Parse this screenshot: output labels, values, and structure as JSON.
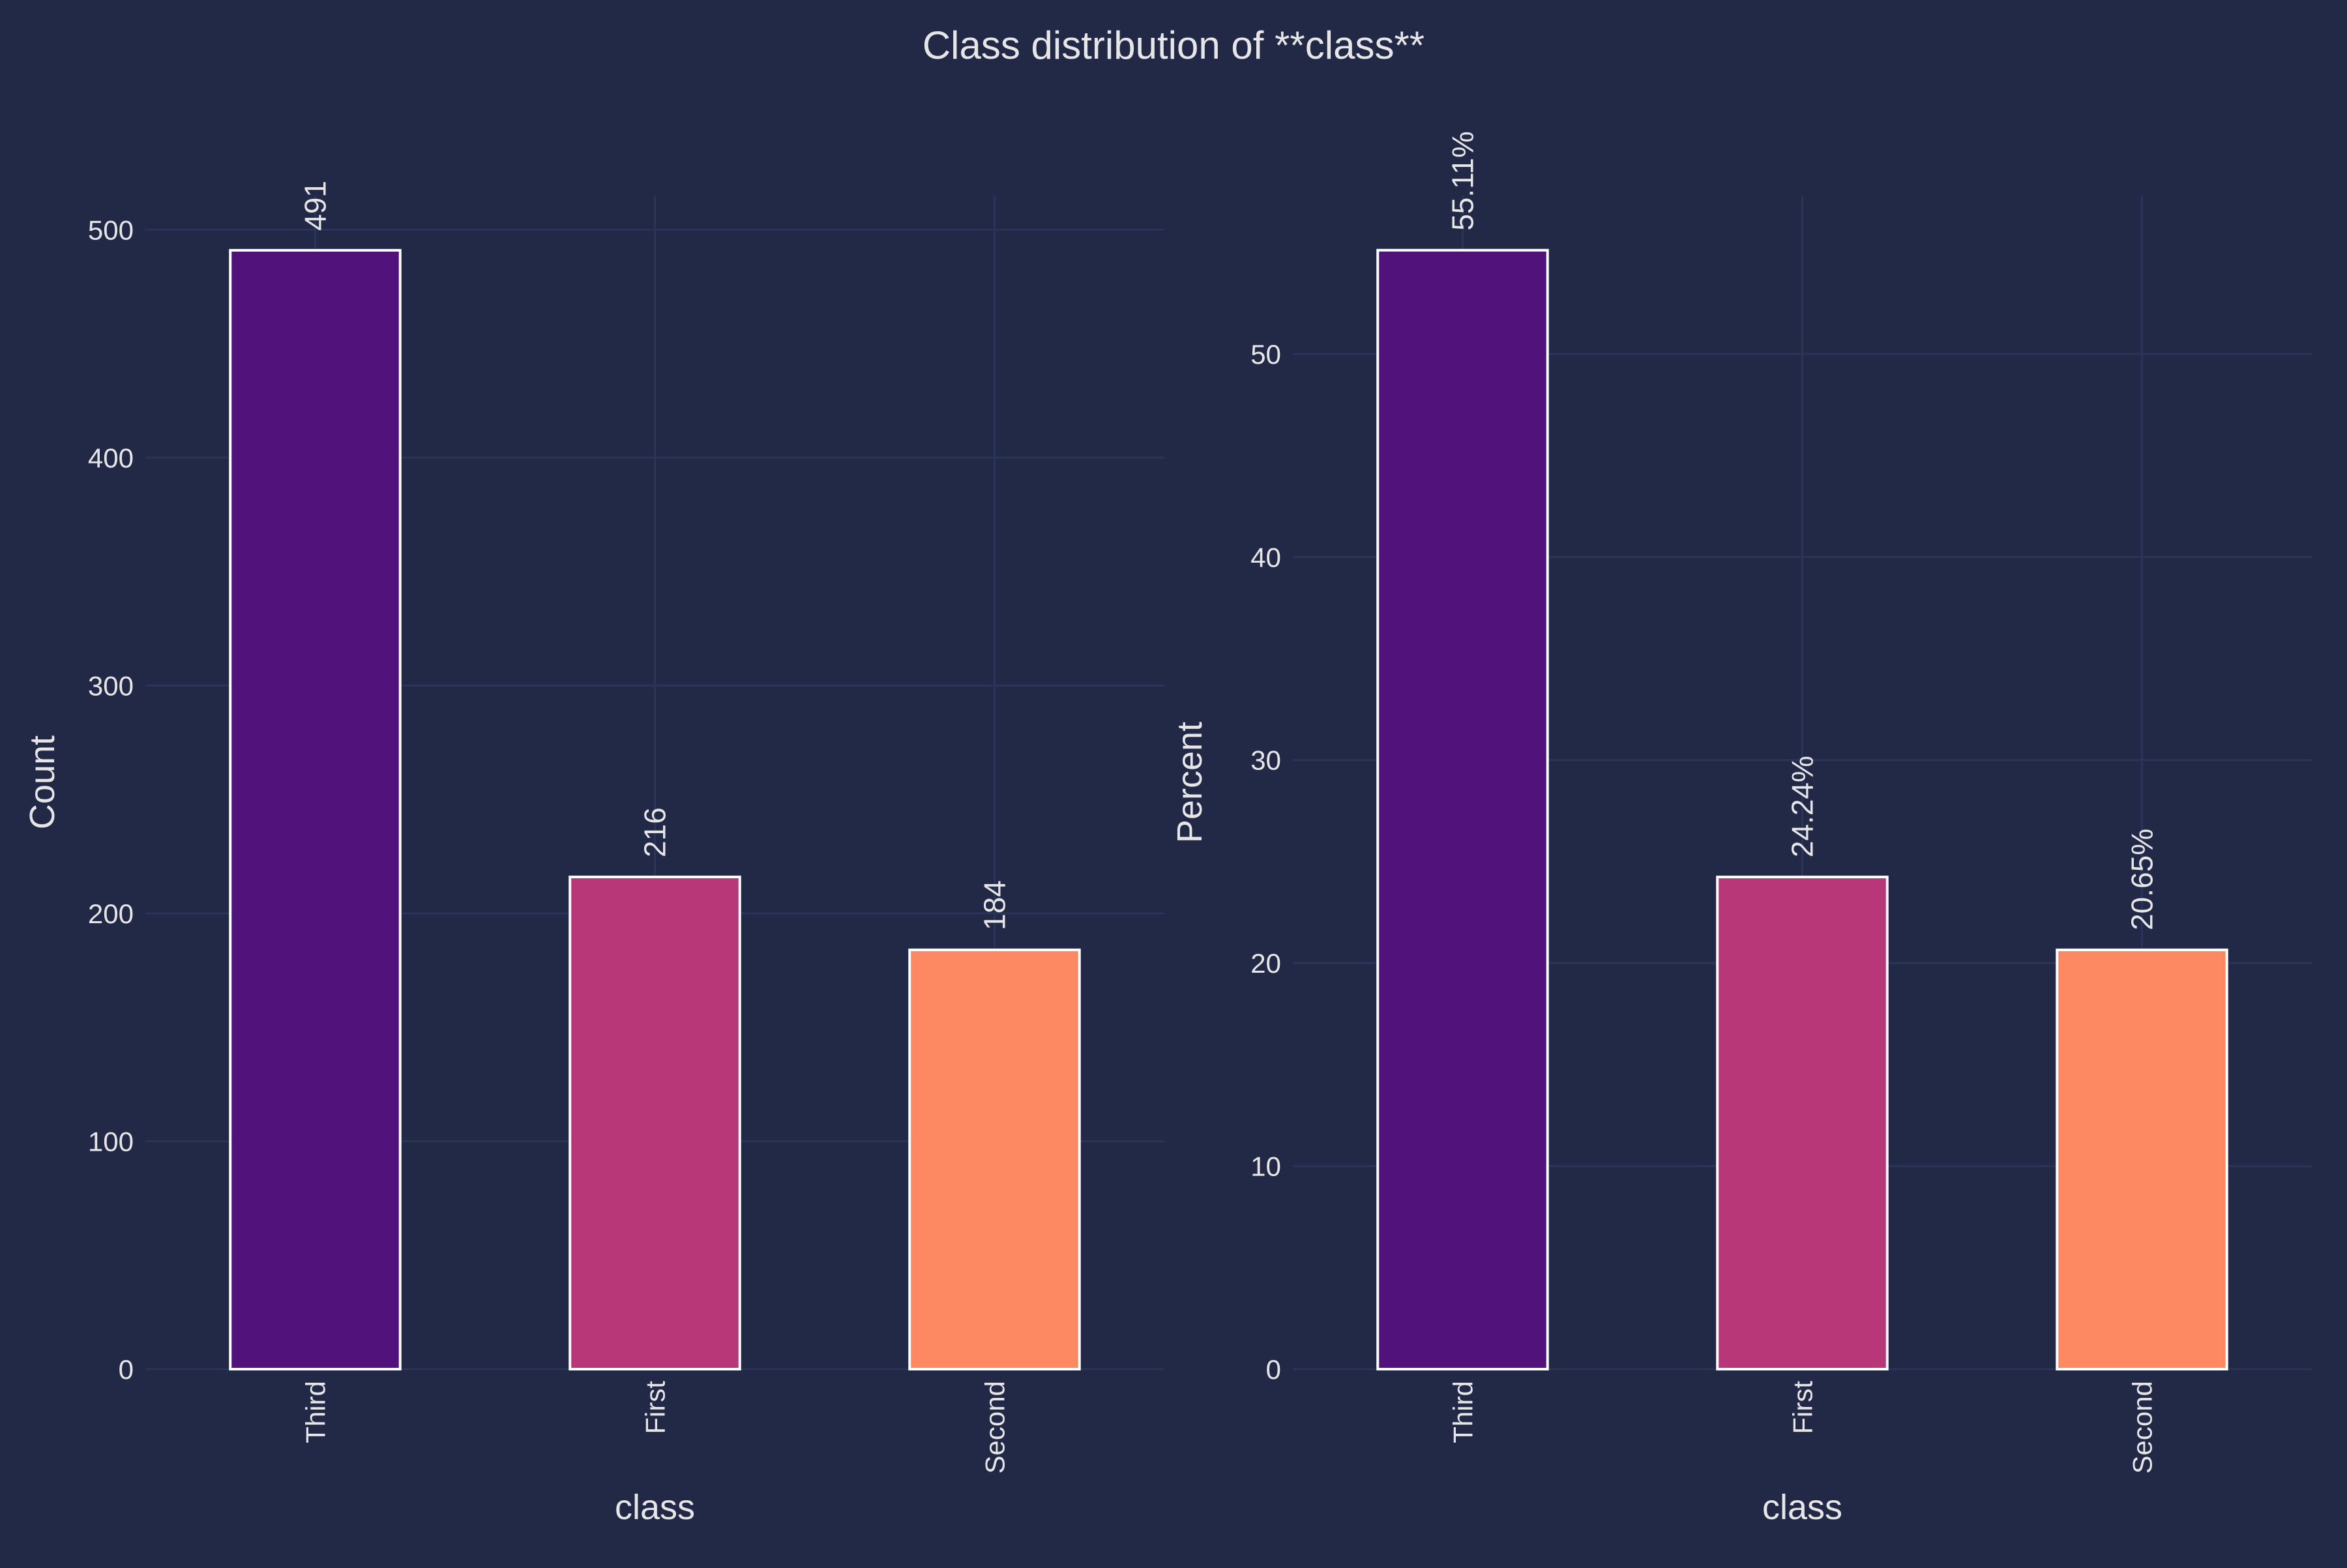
{
  "figure": {
    "title": "Class distribution of **class**",
    "background": "#212946",
    "text_color": "#e6e6e6",
    "grid_color": "#2a3459",
    "bar_edge_color": "#ffffff"
  },
  "chart_data": [
    {
      "type": "bar",
      "xlabel": "class",
      "ylabel": "Count",
      "categories": [
        "Third",
        "First",
        "Second"
      ],
      "values": [
        491,
        216,
        184
      ],
      "data_labels": [
        "491",
        "216",
        "184"
      ],
      "colors": [
        "#51127c",
        "#b73779",
        "#fc8961"
      ],
      "ylim": [
        0,
        515
      ],
      "yticks": [
        0,
        100,
        200,
        300,
        400,
        500
      ],
      "grid": true,
      "legend": "none"
    },
    {
      "type": "bar",
      "xlabel": "class",
      "ylabel": "Percent",
      "categories": [
        "Third",
        "First",
        "Second"
      ],
      "values": [
        55.11,
        24.24,
        20.65
      ],
      "data_labels": [
        "55.11%",
        "24.24%",
        "20.65%"
      ],
      "colors": [
        "#51127c",
        "#b73779",
        "#fc8961"
      ],
      "ylim": [
        0,
        57.8
      ],
      "yticks": [
        0,
        10,
        20,
        30,
        40,
        50
      ],
      "grid": true,
      "legend": "none"
    }
  ]
}
